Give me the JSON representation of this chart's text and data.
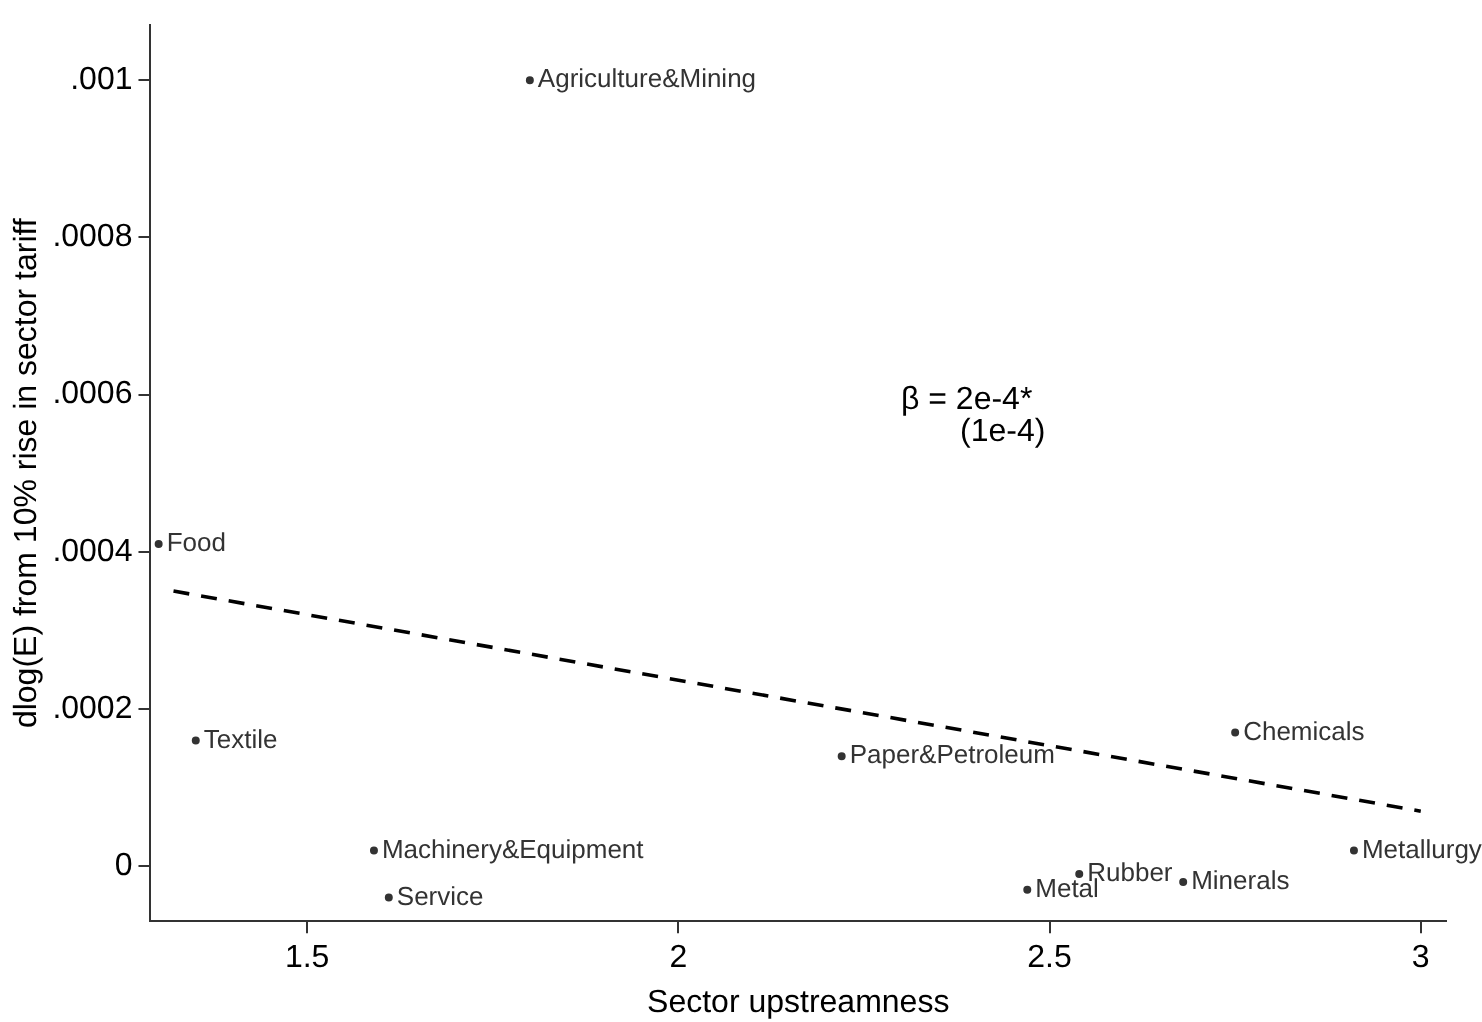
{
  "chart_data": {
    "type": "scatter",
    "xlabel": "Sector upstreamness",
    "ylabel": "dlog(E) from 10% rise in sector tariff",
    "xlim": [
      1.289,
      3.034
    ],
    "xticks": [
      1.5,
      2,
      2.5,
      3
    ],
    "ylim": [
      -7e-05,
      0.00107
    ],
    "yticks": [
      0,
      {
        "value": 0.0002,
        "label": ".0002"
      },
      {
        "value": 0.0004,
        "label": ".0004"
      },
      {
        "value": 0.0006,
        "label": ".0006"
      },
      {
        "value": 0.0008,
        "label": ".0008"
      },
      {
        "value": 0.001,
        "label": ".001"
      }
    ],
    "grid": false,
    "legend": false,
    "annotations": [
      "β = 2e-4*",
      "(1e-4)"
    ],
    "series": [
      {
        "name": "Food",
        "color": "#333333",
        "x": [
          1.3
        ],
        "values": [
          0.00041
        ]
      },
      {
        "name": "Textile",
        "color": "#333333",
        "x": [
          1.35
        ],
        "values": [
          0.00016
        ]
      },
      {
        "name": "Agriculture&Mining",
        "color": "#333333",
        "x": [
          1.8
        ],
        "values": [
          0.001
        ]
      },
      {
        "name": "Machinery&Equipment",
        "color": "#333333",
        "x": [
          1.59
        ],
        "values": [
          2e-05
        ]
      },
      {
        "name": "Service",
        "color": "#333333",
        "x": [
          1.61
        ],
        "values": [
          -4e-05
        ]
      },
      {
        "name": "Paper&Petroleum",
        "color": "#333333",
        "x": [
          2.22
        ],
        "values": [
          0.00014
        ]
      },
      {
        "name": "Chemicals",
        "color": "#333333",
        "x": [
          2.75
        ],
        "values": [
          0.00017
        ]
      },
      {
        "name": "Metallurgy",
        "color": "#333333",
        "x": [
          2.91
        ],
        "values": [
          2e-05
        ]
      },
      {
        "name": "Rubber",
        "color": "#333333",
        "x": [
          2.54
        ],
        "values": [
          -1e-05
        ]
      },
      {
        "name": "Minerals",
        "color": "#333333",
        "x": [
          2.68
        ],
        "values": [
          -2e-05
        ]
      },
      {
        "name": "Metal",
        "color": "#333333",
        "x": [
          2.47
        ],
        "values": [
          -3e-05
        ]
      },
      {
        "type": "line",
        "color": "#000000",
        "line_style": "dashed",
        "x": [
          1.32,
          3.0
        ],
        "values": [
          0.00035,
          7e-05
        ]
      }
    ]
  }
}
